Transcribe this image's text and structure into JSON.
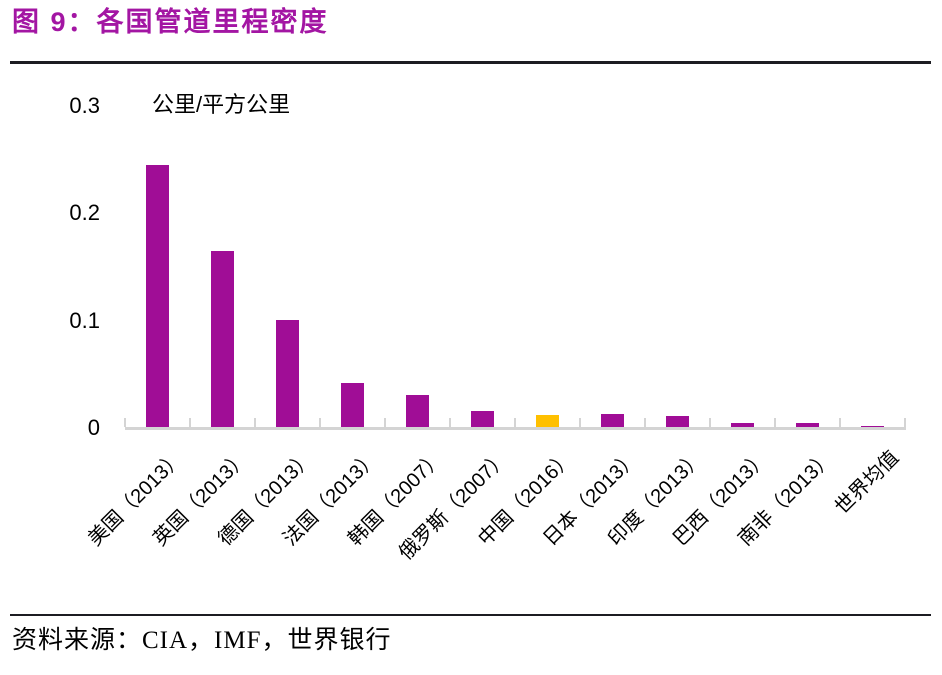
{
  "title": {
    "label": "图 9：各国管道里程密度"
  },
  "colors": {
    "title": "#A316A3",
    "bar_default": "#A00D96",
    "bar_highlight": "#FFC000",
    "axis": "#D4D4D4",
    "rule": "#1C1C22",
    "text": "#000000"
  },
  "chart_data": {
    "type": "bar",
    "title": "图 9：各国管道里程密度",
    "unit_label": "公里/平方公里",
    "ylabel": "公里/平方公里",
    "xlabel": "",
    "categories": [
      "美国（2013）",
      "英国（2013）",
      "德国（2013）",
      "法国（2013）",
      "韩国（2007）",
      "俄罗斯（2007）",
      "中国（2016）",
      "日本（2013）",
      "印度（2013）",
      "巴西（2013）",
      "南非（2013）",
      "世界均值"
    ],
    "values": [
      0.245,
      0.165,
      0.1,
      0.042,
      0.031,
      0.016,
      0.012,
      0.013,
      0.011,
      0.005,
      0.005,
      0.002
    ],
    "highlight_index": 6,
    "bar_color": "#A00D96",
    "highlight_color": "#FFC000",
    "ylim": [
      0,
      0.3
    ],
    "yticks": [
      0,
      0.1,
      0.2,
      0.3
    ],
    "ytick_labels": [
      "0",
      "0.1",
      "0.2",
      "0.3"
    ],
    "grid": false,
    "legend_position": "none"
  },
  "source": {
    "label": "资料来源：CIA，IMF，世界银行"
  }
}
